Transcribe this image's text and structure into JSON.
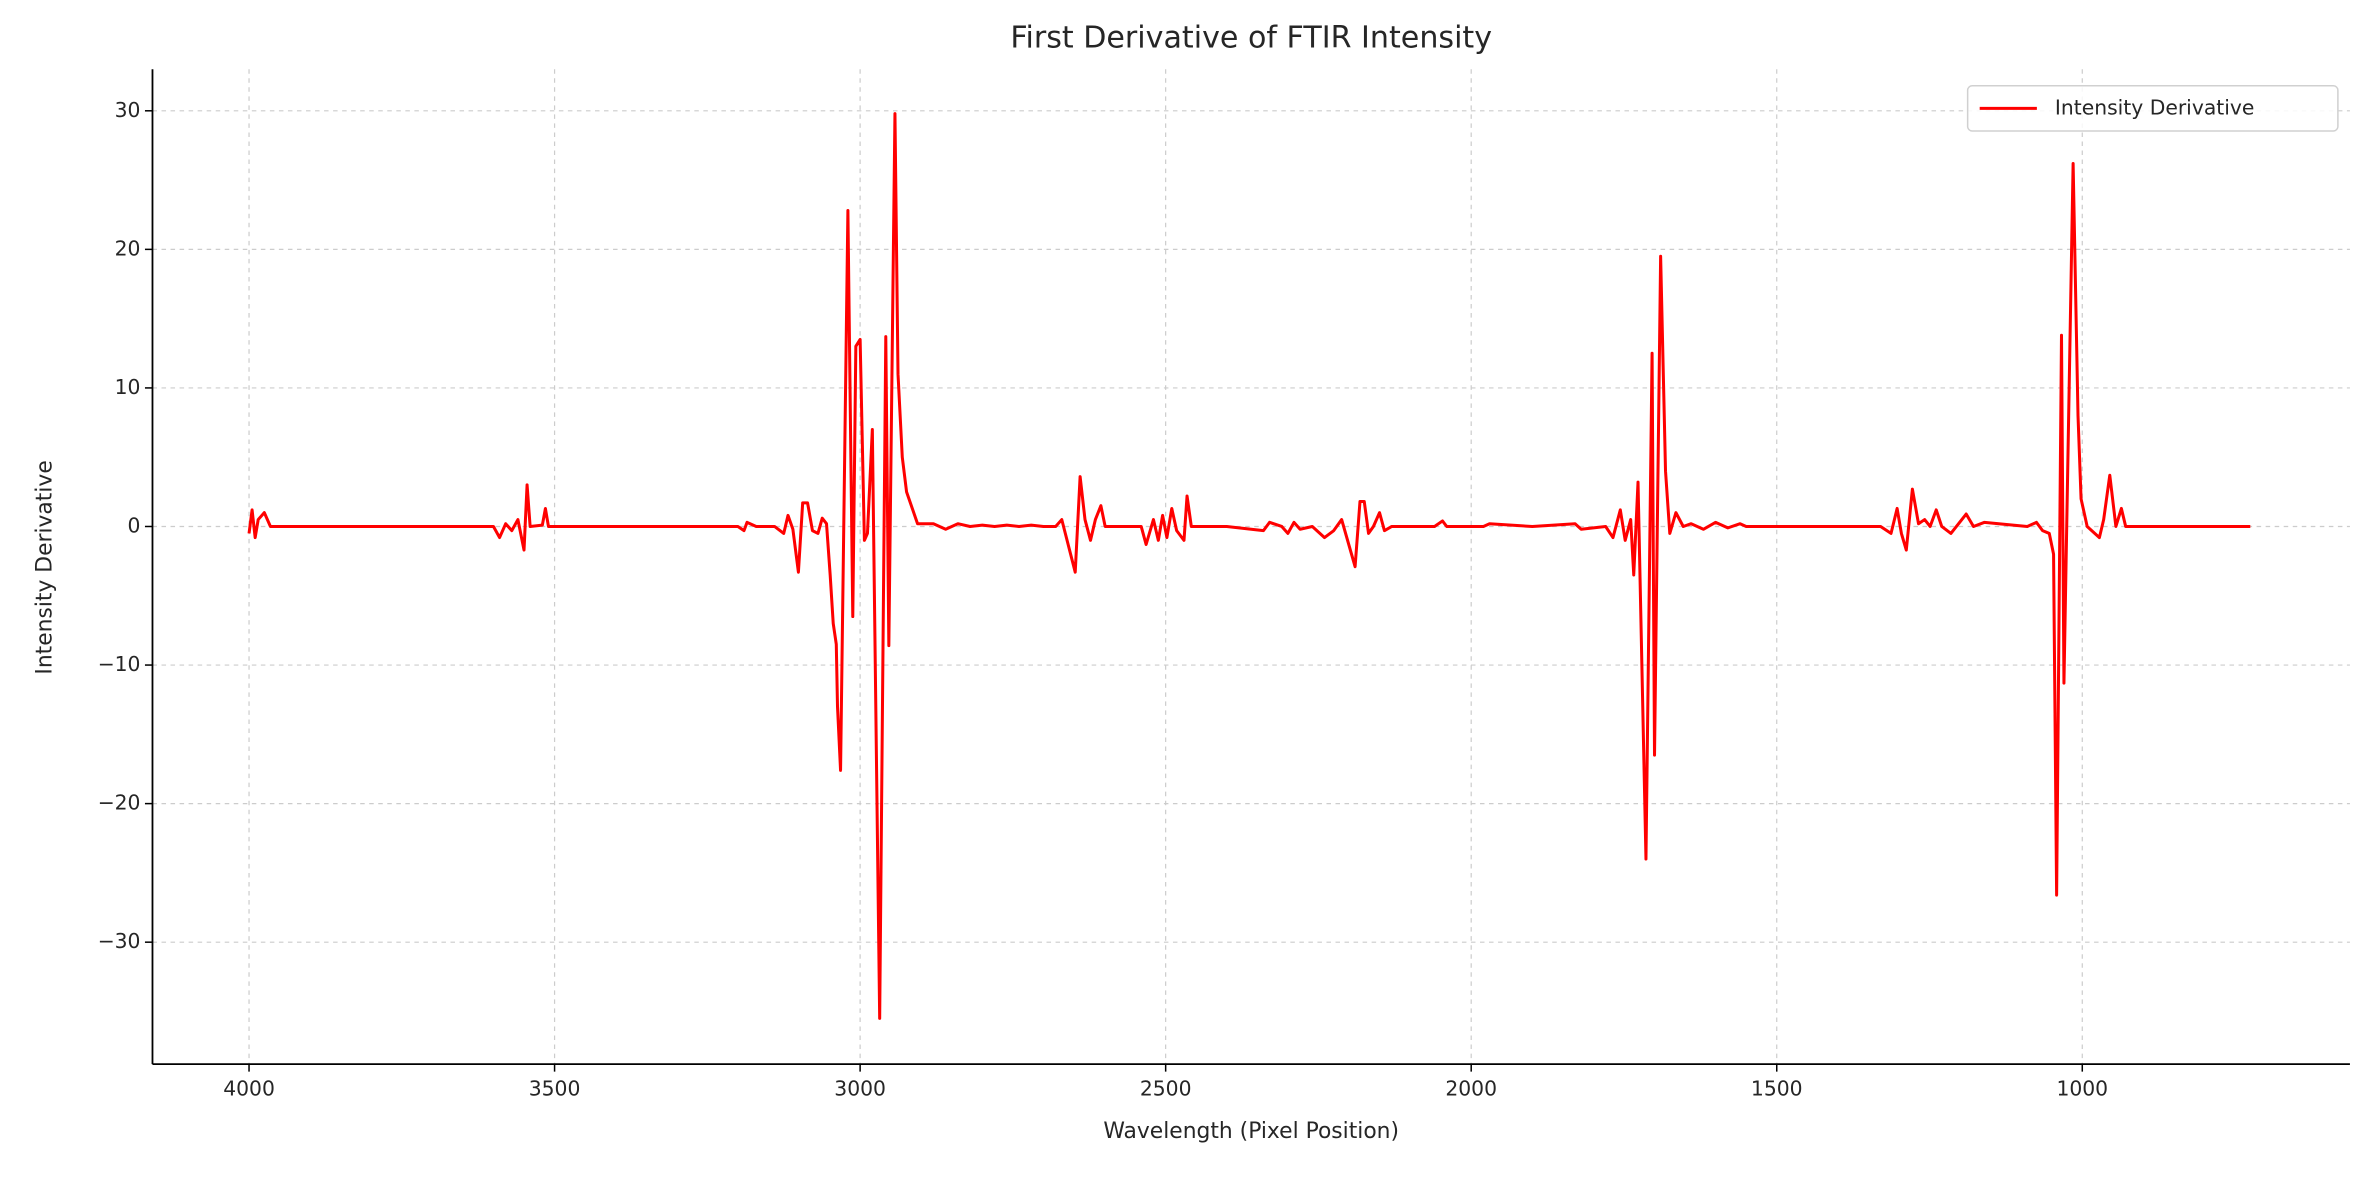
{
  "chart_data": {
    "type": "line",
    "title": "First Derivative of FTIR Intensity",
    "x_label": "Wavelength (Pixel Position)",
    "y_label": "Intensity Derivative",
    "x": [
      4000,
      3995,
      3990,
      3985,
      3975,
      3965,
      3600,
      3590,
      3580,
      3570,
      3560,
      3550,
      3545,
      3540,
      3520,
      3515,
      3510,
      3200,
      3190,
      3185,
      3170,
      3140,
      3125,
      3118,
      3110,
      3101,
      3094,
      3086,
      3078,
      3069,
      3062,
      3055,
      3049,
      3044,
      3039,
      3037,
      3032,
      3020,
      3012,
      3007,
      3000,
      2993,
      2988,
      2980,
      2968,
      2958,
      2953,
      2943,
      2938,
      2931,
      2924,
      2906,
      2880,
      2860,
      2840,
      2820,
      2800,
      2780,
      2760,
      2740,
      2720,
      2700,
      2680,
      2670,
      2648,
      2640,
      2632,
      2623,
      2615,
      2606,
      2599,
      2540,
      2532,
      2520,
      2512,
      2505,
      2498,
      2490,
      2482,
      2470,
      2465,
      2458,
      2400,
      2340,
      2330,
      2310,
      2300,
      2290,
      2280,
      2260,
      2240,
      2225,
      2212,
      2190,
      2182,
      2175,
      2168,
      2160,
      2150,
      2142,
      2130,
      2060,
      2047,
      2040,
      1980,
      1970,
      1900,
      1830,
      1820,
      1780,
      1768,
      1756,
      1748,
      1739,
      1734,
      1727,
      1714,
      1704,
      1700,
      1690,
      1682,
      1675,
      1665,
      1653,
      1640,
      1620,
      1600,
      1580,
      1560,
      1550,
      1330,
      1313,
      1303,
      1296,
      1288,
      1278,
      1268,
      1258,
      1249,
      1239,
      1230,
      1215,
      1190,
      1178,
      1160,
      1090,
      1075,
      1065,
      1054,
      1047,
      1042,
      1034,
      1030,
      1015,
      1007,
      1002,
      992,
      972,
      965,
      955,
      945,
      936,
      929,
      725
    ],
    "series": [
      {
        "name": "Intensity Derivative",
        "color": "#ff0000",
        "values": [
          -0.5,
          1.2,
          -0.8,
          0.5,
          1.0,
          0,
          0,
          -0.8,
          0.2,
          -0.3,
          0.5,
          -1.7,
          3.0,
          0,
          0.1,
          1.3,
          0,
          0,
          -0.3,
          0.3,
          0,
          0,
          -0.5,
          0.8,
          -0.2,
          -3.3,
          1.7,
          1.7,
          -0.3,
          -0.5,
          0.6,
          0.2,
          -3.5,
          -7,
          -8.5,
          -13,
          -17.6,
          22.8,
          -6.5,
          13,
          13.5,
          -1,
          -0.5,
          7,
          -35.5,
          13.7,
          -8.6,
          29.8,
          11,
          5,
          2.5,
          0.2,
          0.2,
          -0.2,
          0.2,
          0,
          0.1,
          0,
          0.1,
          0,
          0.1,
          0,
          0,
          0.5,
          -3.3,
          3.6,
          0.5,
          -1,
          0.5,
          1.5,
          0,
          0,
          -1.3,
          0.5,
          -1,
          0.8,
          -0.8,
          1.3,
          -0.3,
          -1,
          2.2,
          0,
          0,
          -0.3,
          0.3,
          0,
          -0.5,
          0.3,
          -0.2,
          0,
          -0.8,
          -0.3,
          0.5,
          -2.9,
          1.8,
          1.8,
          -0.5,
          0,
          1.0,
          -0.3,
          0,
          0,
          0.4,
          0,
          0,
          0.2,
          0,
          0.2,
          -0.2,
          0,
          -0.8,
          1.2,
          -1,
          0.5,
          -3.5,
          3.2,
          -24,
          12.5,
          -16.5,
          19.5,
          4,
          -0.5,
          1,
          0,
          0.2,
          -0.2,
          0.3,
          -0.1,
          0.2,
          0,
          0,
          -0.5,
          1.3,
          -0.5,
          -1.7,
          2.7,
          0.2,
          0.5,
          0,
          1.2,
          0,
          -0.5,
          0.9,
          0,
          0.3,
          0,
          0.3,
          -0.3,
          -0.5,
          -2,
          -26.6,
          13.8,
          -11.3,
          26.2,
          8,
          2,
          0,
          -0.8,
          0.5,
          3.7,
          0,
          1.3,
          0,
          0
        ]
      }
    ],
    "xlim": [
      4158,
      562
    ],
    "xticks": [
      4000,
      3500,
      3000,
      2500,
      2000,
      1500,
      1000
    ],
    "ylim": [
      -38.8,
      33
    ],
    "yticks": [
      {
        "value": -30,
        "label": "−30"
      },
      {
        "value": -20,
        "label": "−20"
      },
      {
        "value": -10,
        "label": "−10"
      },
      0,
      10,
      20,
      30
    ],
    "grid": true,
    "legend": "upper right"
  }
}
